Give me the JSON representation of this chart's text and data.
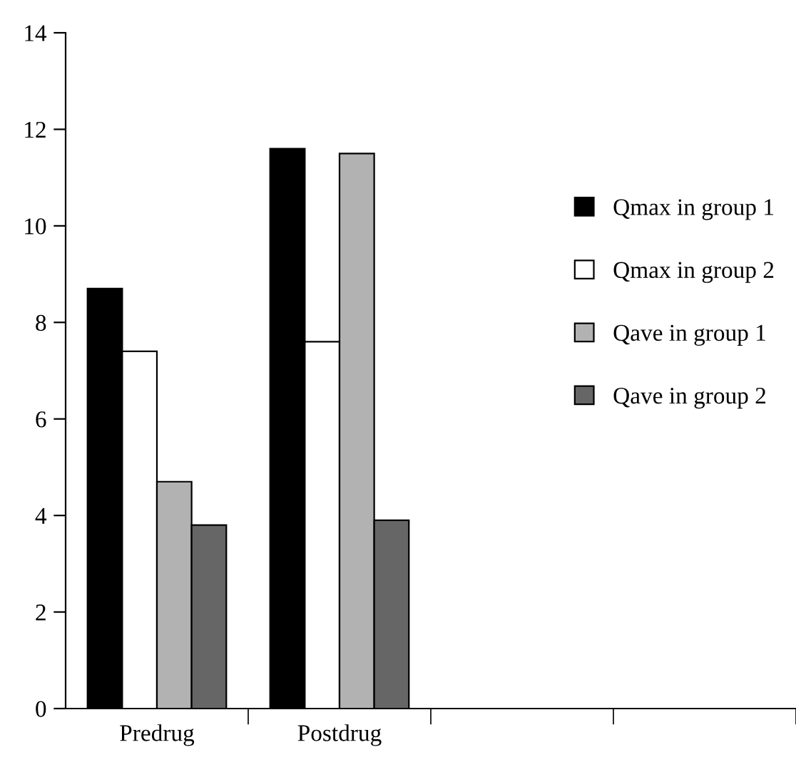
{
  "chart_data": {
    "type": "bar",
    "categories": [
      "Predrug",
      "Postdrug",
      null,
      null
    ],
    "series": [
      {
        "name": "Qmax in group 1",
        "color": "#000000",
        "values": [
          8.7,
          11.6,
          null,
          null
        ]
      },
      {
        "name": "Qmax in group 2",
        "color": "#ffffff",
        "values": [
          7.4,
          7.6,
          null,
          null
        ]
      },
      {
        "name": "Qave in group 1",
        "color": "#b2b2b2",
        "values": [
          4.7,
          11.5,
          null,
          null
        ]
      },
      {
        "name": "Qave in group 2",
        "color": "#666666",
        "values": [
          3.8,
          3.9,
          null,
          null
        ]
      }
    ],
    "ylim": [
      0,
      14
    ],
    "yticks": [
      0,
      2,
      4,
      6,
      8,
      10,
      12,
      14
    ],
    "grid": false,
    "legend": "right"
  }
}
